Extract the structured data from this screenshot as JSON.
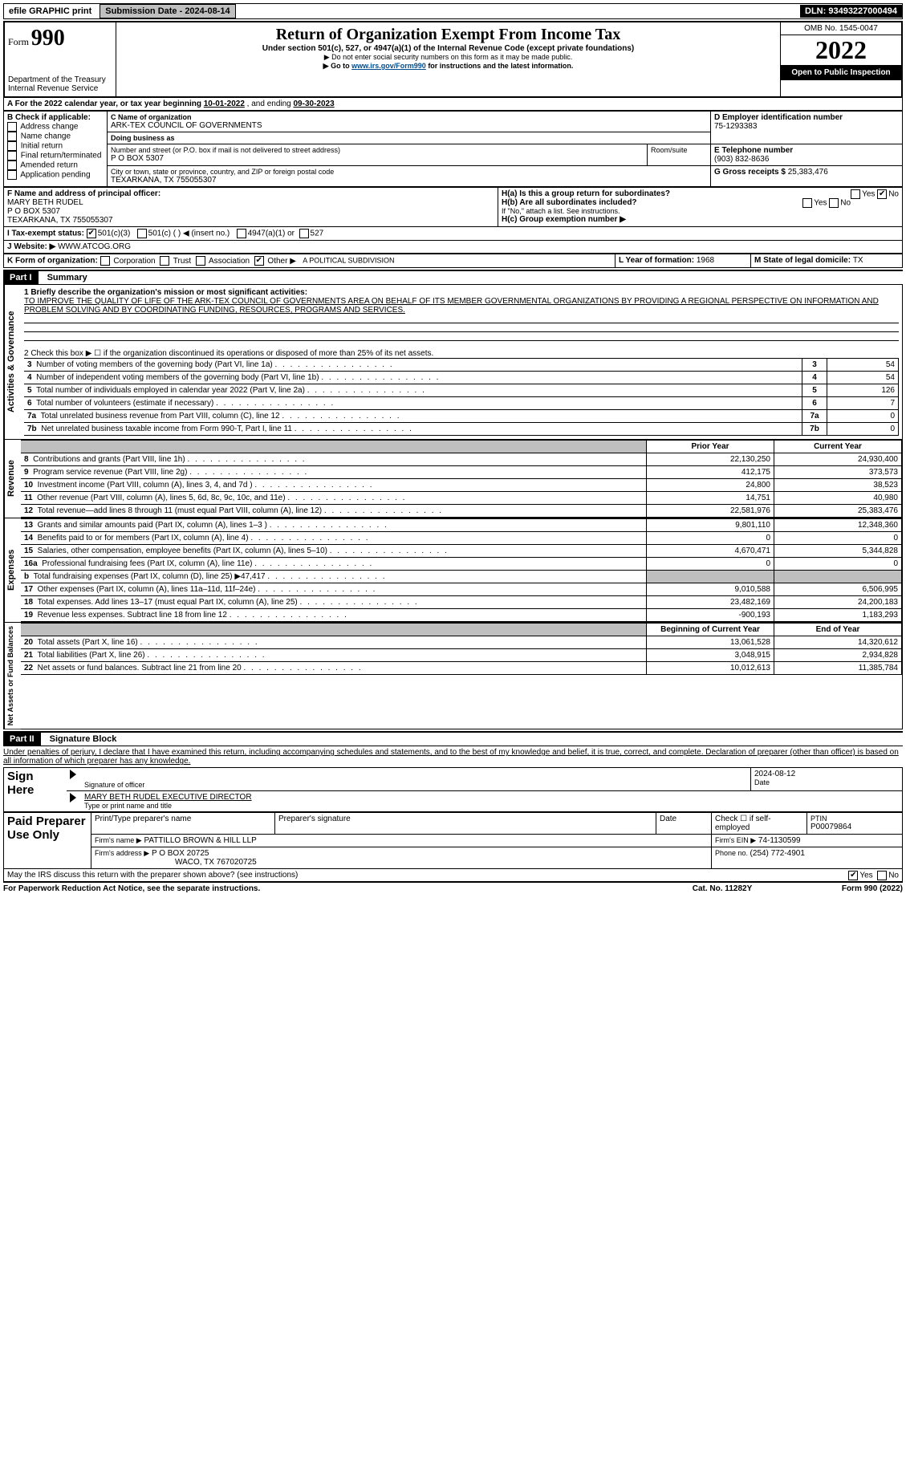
{
  "topbar": {
    "efile": "efile GRAPHIC print",
    "submission_label": "Submission Date - 2024-08-14",
    "dln": "DLN: 93493227000494"
  },
  "header": {
    "form_prefix": "Form",
    "form_number": "990",
    "title": "Return of Organization Exempt From Income Tax",
    "subtitle": "Under section 501(c), 527, or 4947(a)(1) of the Internal Revenue Code (except private foundations)",
    "note1": "▶ Do not enter social security numbers on this form as it may be made public.",
    "note2_pre": "▶ Go to ",
    "note2_link": "www.irs.gov/Form990",
    "note2_post": " for instructions and the latest information.",
    "dept": "Department of the Treasury",
    "irs": "Internal Revenue Service",
    "omb": "OMB No. 1545-0047",
    "year": "2022",
    "open": "Open to Public Inspection"
  },
  "period": {
    "a_label": "A For the 2022 calendar year, or tax year beginning ",
    "begin": "10-01-2022",
    "mid": " , and ending ",
    "end": "09-30-2023"
  },
  "sectionB": {
    "b_label": "B Check if applicable:",
    "opts": [
      "Address change",
      "Name change",
      "Initial return",
      "Final return/terminated",
      "Amended return",
      "Application pending"
    ],
    "c_label": "C Name of organization",
    "org_name": "ARK-TEX COUNCIL OF GOVERNMENTS",
    "dba_label": "Doing business as",
    "dba": "",
    "street_label": "Number and street (or P.O. box if mail is not delivered to street address)",
    "room_label": "Room/suite",
    "street": "P O BOX 5307",
    "city_label": "City or town, state or province, country, and ZIP or foreign postal code",
    "city": "TEXARKANA, TX  755055307",
    "d_label": "D Employer identification number",
    "ein": "75-1293383",
    "e_label": "E Telephone number",
    "phone": "(903) 832-8636",
    "g_label": "G Gross receipts $ ",
    "gross": "25,383,476"
  },
  "sectionF": {
    "f_label": "F Name and address of principal officer:",
    "name": "MARY BETH RUDEL",
    "addr1": "P O BOX 5307",
    "addr2": "TEXARKANA, TX  755055307"
  },
  "sectionH": {
    "ha_label": "H(a)  Is this a group return for subordinates?",
    "hb_label": "H(b)  Are all subordinates included?",
    "hb_note": "If \"No,\" attach a list. See instructions.",
    "hc_label": "H(c)  Group exemption number ▶",
    "yes": "Yes",
    "no": "No"
  },
  "sectionI": {
    "label": "I  Tax-exempt status:",
    "opt1": "501(c)(3)",
    "opt2": "501(c) ( ) ◀ (insert no.)",
    "opt3": "4947(a)(1) or",
    "opt4": "527"
  },
  "sectionJ": {
    "label": "J  Website: ▶",
    "site": "WWW.ATCOG.ORG"
  },
  "sectionK": {
    "label": "K Form of organization:",
    "opts": [
      "Corporation",
      "Trust",
      "Association",
      "Other ▶"
    ],
    "other_text": "A POLITICAL SUBDIVISION"
  },
  "sectionL": {
    "l_label": "L Year of formation: ",
    "l_val": "1968",
    "m_label": "M State of legal domicile: ",
    "m_val": "TX"
  },
  "part1": {
    "bar": "Part I",
    "title": "Summary",
    "line1_label": "1  Briefly describe the organization's mission or most significant activities:",
    "mission": "TO IMPROVE THE QUALITY OF LIFE OF THE ARK-TEX COUNCIL OF GOVERNMENTS AREA ON BEHALF OF ITS MEMBER GOVERNMENTAL ORGANIZATIONS BY PROVIDING A REGIONAL PERSPECTIVE ON INFORMATION AND PROBLEM SOLVING AND BY COORDINATING FUNDING, RESOURCES, PROGRAMS AND SERVICES.",
    "line2": "2  Check this box ▶ ☐ if the organization discontinued its operations or disposed of more than 25% of its net assets."
  },
  "gov_rows": [
    {
      "n": "3",
      "label": "Number of voting members of the governing body (Part VI, line 1a)",
      "val": "54"
    },
    {
      "n": "4",
      "label": "Number of independent voting members of the governing body (Part VI, line 1b)",
      "val": "54"
    },
    {
      "n": "5",
      "label": "Total number of individuals employed in calendar year 2022 (Part V, line 2a)",
      "val": "126"
    },
    {
      "n": "6",
      "label": "Total number of volunteers (estimate if necessary)",
      "val": "7"
    },
    {
      "n": "7a",
      "label": "Total unrelated business revenue from Part VIII, column (C), line 12",
      "val": "0"
    },
    {
      "n": "7b",
      "label": "Net unrelated business taxable income from Form 990-T, Part I, line 11",
      "val": "0"
    }
  ],
  "pycyk": {
    "py": "Prior Year",
    "cy": "Current Year"
  },
  "rev_rows": [
    {
      "n": "8",
      "label": "Contributions and grants (Part VIII, line 1h)",
      "py": "22,130,250",
      "cy": "24,930,400"
    },
    {
      "n": "9",
      "label": "Program service revenue (Part VIII, line 2g)",
      "py": "412,175",
      "cy": "373,573"
    },
    {
      "n": "10",
      "label": "Investment income (Part VIII, column (A), lines 3, 4, and 7d )",
      "py": "24,800",
      "cy": "38,523"
    },
    {
      "n": "11",
      "label": "Other revenue (Part VIII, column (A), lines 5, 6d, 8c, 9c, 10c, and 11e)",
      "py": "14,751",
      "cy": "40,980"
    },
    {
      "n": "12",
      "label": "Total revenue—add lines 8 through 11 (must equal Part VIII, column (A), line 12)",
      "py": "22,581,976",
      "cy": "25,383,476"
    }
  ],
  "exp_rows": [
    {
      "n": "13",
      "label": "Grants and similar amounts paid (Part IX, column (A), lines 1–3 )",
      "py": "9,801,110",
      "cy": "12,348,360"
    },
    {
      "n": "14",
      "label": "Benefits paid to or for members (Part IX, column (A), line 4)",
      "py": "0",
      "cy": "0"
    },
    {
      "n": "15",
      "label": "Salaries, other compensation, employee benefits (Part IX, column (A), lines 5–10)",
      "py": "4,670,471",
      "cy": "5,344,828"
    },
    {
      "n": "16a",
      "label": "Professional fundraising fees (Part IX, column (A), line 11e)",
      "py": "0",
      "cy": "0"
    },
    {
      "n": "b",
      "label": "Total fundraising expenses (Part IX, column (D), line 25) ▶47,417",
      "py": "",
      "cy": "",
      "gray": true
    },
    {
      "n": "17",
      "label": "Other expenses (Part IX, column (A), lines 11a–11d, 11f–24e)",
      "py": "9,010,588",
      "cy": "6,506,995"
    },
    {
      "n": "18",
      "label": "Total expenses. Add lines 13–17 (must equal Part IX, column (A), line 25)",
      "py": "23,482,169",
      "cy": "24,200,183"
    },
    {
      "n": "19",
      "label": "Revenue less expenses. Subtract line 18 from line 12",
      "py": "-900,193",
      "cy": "1,183,293"
    }
  ],
  "bocy": {
    "py": "Beginning of Current Year",
    "cy": "End of Year"
  },
  "na_rows": [
    {
      "n": "20",
      "label": "Total assets (Part X, line 16)",
      "py": "13,061,528",
      "cy": "14,320,612"
    },
    {
      "n": "21",
      "label": "Total liabilities (Part X, line 26)",
      "py": "3,048,915",
      "cy": "2,934,828"
    },
    {
      "n": "22",
      "label": "Net assets or fund balances. Subtract line 21 from line 20",
      "py": "10,012,613",
      "cy": "11,385,784"
    }
  ],
  "vert_labels": {
    "gov": "Activities & Governance",
    "rev": "Revenue",
    "exp": "Expenses",
    "na": "Net Assets or Fund Balances"
  },
  "part2": {
    "bar": "Part II",
    "title": "Signature Block",
    "decl": "Under penalties of perjury, I declare that I have examined this return, including accompanying schedules and statements, and to the best of my knowledge and belief, it is true, correct, and complete. Declaration of preparer (other than officer) is based on all information of which preparer has any knowledge."
  },
  "sign": {
    "here": "Sign Here",
    "sig_label": "Signature of officer",
    "date": "2024-08-12",
    "date_label": "Date",
    "name": "MARY BETH RUDEL EXECUTIVE DIRECTOR",
    "name_label": "Type or print name and title"
  },
  "paid": {
    "title": "Paid Preparer Use Only",
    "col1": "Print/Type preparer's name",
    "col2": "Preparer's signature",
    "col3": "Date",
    "col4_label": "Check ☐ if self-employed",
    "ptin_label": "PTIN",
    "ptin": "P00079864",
    "firm_name_label": "Firm's name    ▶",
    "firm_name": "PATTILLO BROWN & HILL LLP",
    "firm_ein_label": "Firm's EIN ▶",
    "firm_ein": "74-1130599",
    "firm_addr_label": "Firm's address ▶",
    "firm_addr1": "P O BOX 20725",
    "firm_addr2": "WACO, TX  767020725",
    "phone_label": "Phone no. ",
    "phone": "(254) 772-4901"
  },
  "discuss": {
    "q": "May the IRS discuss this return with the preparer shown above? (see instructions)",
    "yes": "Yes",
    "no": "No"
  },
  "footer": {
    "left": "For Paperwork Reduction Act Notice, see the separate instructions.",
    "mid": "Cat. No. 11282Y",
    "right": "Form 990 (2022)"
  }
}
